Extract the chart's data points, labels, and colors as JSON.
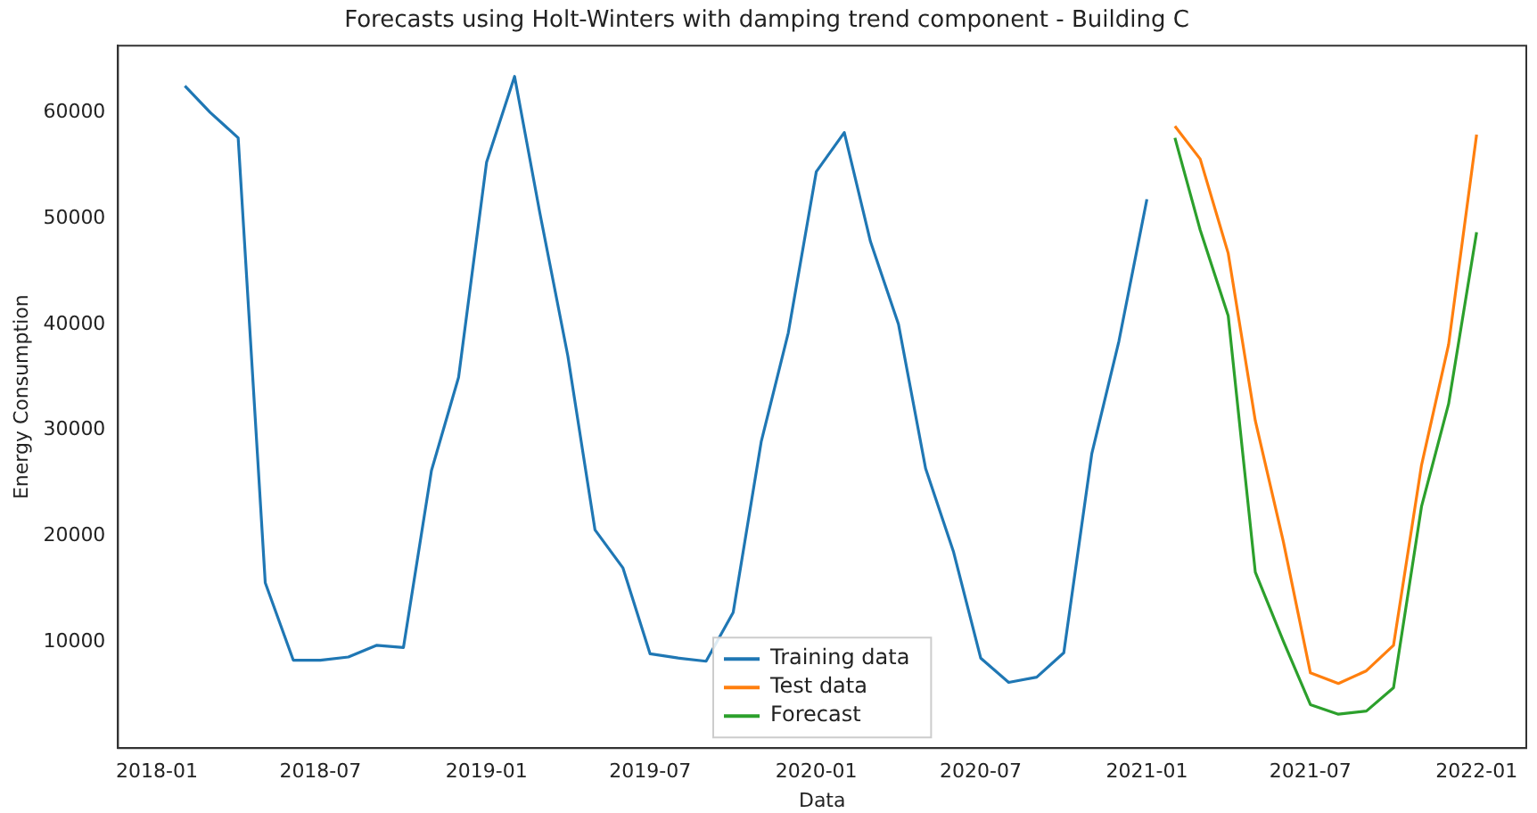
{
  "chart_data": {
    "type": "line",
    "title": "Forecasts using Holt-Winters with damping trend component - Building C",
    "xlabel": "Data",
    "ylabel": "Energy Consumption",
    "series": [
      {
        "name": "Training data",
        "color": "#1f77b4",
        "x": [
          "2018-02",
          "2018-03",
          "2018-04",
          "2018-05",
          "2018-06",
          "2018-07",
          "2018-08",
          "2018-09",
          "2018-10",
          "2018-11",
          "2018-12",
          "2019-01",
          "2019-02",
          "2019-03",
          "2019-04",
          "2019-05",
          "2019-06",
          "2019-07",
          "2019-08",
          "2019-09",
          "2019-10",
          "2019-11",
          "2019-12",
          "2020-01",
          "2020-02",
          "2020-03",
          "2020-04",
          "2020-05",
          "2020-06",
          "2020-07",
          "2020-08",
          "2020-09",
          "2020-10",
          "2020-11",
          "2020-12",
          "2021-01"
        ],
        "values": [
          62500,
          60000,
          57600,
          15600,
          8300,
          8300,
          8600,
          9700,
          9500,
          26200,
          35000,
          55300,
          63400,
          50500,
          37000,
          20600,
          17000,
          8900,
          8500,
          8200,
          12800,
          28900,
          39200,
          54400,
          58100,
          47800,
          40000,
          26400,
          18500,
          8500,
          6200,
          6700,
          9000,
          27800,
          38400,
          51800
        ]
      },
      {
        "name": "Test data",
        "color": "#ff7f0e",
        "x": [
          "2021-02",
          "2021-03",
          "2021-04",
          "2021-05",
          "2021-06",
          "2021-07",
          "2021-08",
          "2021-09",
          "2021-10",
          "2021-11",
          "2021-12",
          "2022-01"
        ],
        "values": [
          58700,
          55600,
          46700,
          30900,
          19500,
          7100,
          6100,
          7300,
          9700,
          26700,
          38100,
          57900
        ]
      },
      {
        "name": "Forecast",
        "color": "#2ca02c",
        "x": [
          "2021-02",
          "2021-03",
          "2021-04",
          "2021-05",
          "2021-06",
          "2021-07",
          "2021-08",
          "2021-09",
          "2021-10",
          "2021-11",
          "2021-12",
          "2022-01"
        ],
        "values": [
          57600,
          48900,
          40800,
          16600,
          10100,
          4100,
          3200,
          3500,
          5700,
          22800,
          32500,
          48700
        ]
      }
    ],
    "xlim": [
      "2017-11-19",
      "2022-02-25"
    ],
    "xticks": [
      "2018-01",
      "2018-07",
      "2019-01",
      "2019-07",
      "2020-01",
      "2020-07",
      "2021-01",
      "2021-07",
      "2022-01"
    ],
    "ylim": [
      0,
      66300
    ],
    "yticks": [
      10000,
      20000,
      30000,
      40000,
      50000,
      60000
    ],
    "grid": false,
    "legend": "bottom",
    "marker": "none",
    "line_style": "solid"
  }
}
